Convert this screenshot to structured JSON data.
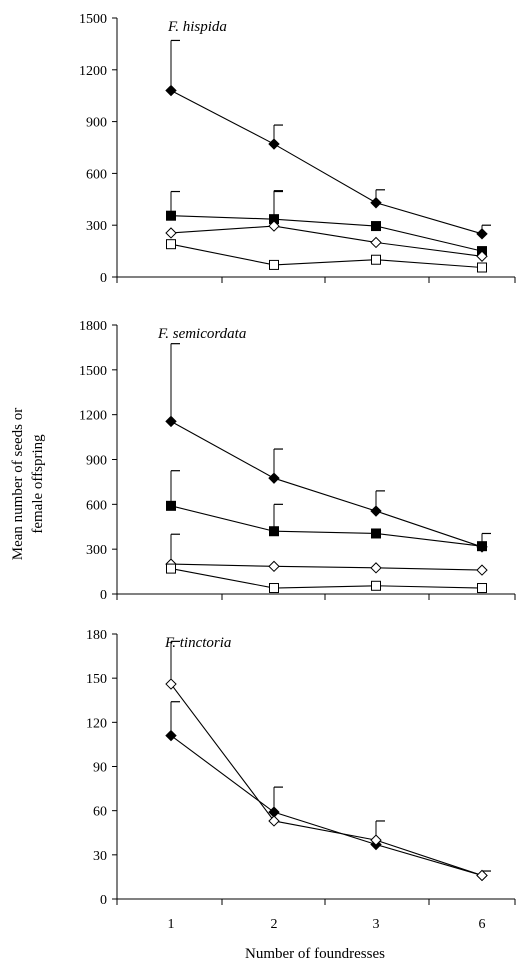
{
  "colors": {
    "ink": "#000000",
    "background": "#ffffff"
  },
  "x_axis_label": "Number of foundresses",
  "y_axis_label_lines": [
    "Mean number of seeds or",
    "female offspring"
  ],
  "chart_data": [
    {
      "type": "line",
      "title": "F. hispida",
      "categories": [
        "1",
        "2",
        "3",
        "6"
      ],
      "ylim": [
        0,
        1500
      ],
      "yticks": [
        "0",
        "300",
        "600",
        "900",
        "1200",
        "1500"
      ],
      "grid": false,
      "series": [
        {
          "marker": "filled-diamond",
          "values": [
            1080,
            770,
            430,
            250
          ],
          "error_upper": [
            290,
            110,
            75,
            50
          ]
        },
        {
          "marker": "filled-square",
          "values": [
            355,
            335,
            295,
            150
          ],
          "error_upper": [
            140,
            165,
            0,
            0
          ]
        },
        {
          "marker": "open-diamond",
          "values": [
            255,
            295,
            200,
            120
          ],
          "error_upper": [
            0,
            200,
            0,
            0
          ]
        },
        {
          "marker": "open-square",
          "values": [
            190,
            70,
            100,
            55
          ],
          "error_upper": [
            0,
            0,
            0,
            0
          ]
        }
      ]
    },
    {
      "type": "line",
      "title": "F. semicordata",
      "categories": [
        "1",
        "2",
        "3",
        "6"
      ],
      "ylim": [
        0,
        1800
      ],
      "yticks": [
        "0",
        "300",
        "600",
        "900",
        "1200",
        "1500",
        "1800"
      ],
      "grid": false,
      "series": [
        {
          "marker": "filled-diamond",
          "values": [
            1155,
            775,
            555,
            315
          ],
          "error_upper": [
            520,
            195,
            135,
            90
          ]
        },
        {
          "marker": "filled-square",
          "values": [
            590,
            420,
            405,
            320
          ],
          "error_upper": [
            235,
            180,
            0,
            0
          ]
        },
        {
          "marker": "open-diamond",
          "values": [
            200,
            185,
            175,
            160
          ],
          "error_upper": [
            200,
            0,
            0,
            0
          ]
        },
        {
          "marker": "open-square",
          "values": [
            170,
            40,
            55,
            40
          ],
          "error_upper": [
            0,
            0,
            0,
            0
          ]
        }
      ]
    },
    {
      "type": "line",
      "title": "F. tinctoria",
      "categories": [
        "1",
        "2",
        "3",
        "6"
      ],
      "ylim": [
        0,
        180
      ],
      "yticks": [
        "0",
        "30",
        "60",
        "90",
        "120",
        "150",
        "180"
      ],
      "grid": false,
      "series": [
        {
          "marker": "filled-diamond",
          "values": [
            111,
            59,
            37,
            16
          ],
          "error_upper": [
            23,
            17,
            0,
            3
          ]
        },
        {
          "marker": "open-diamond",
          "values": [
            146,
            53,
            40,
            16
          ],
          "error_upper": [
            29,
            0,
            13,
            0
          ]
        }
      ]
    }
  ]
}
